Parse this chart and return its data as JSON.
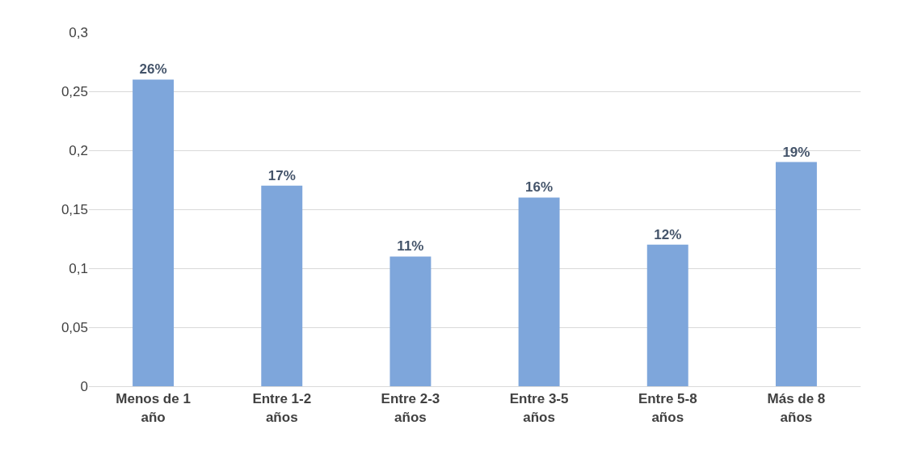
{
  "chart_data": {
    "type": "bar",
    "categories": [
      "Menos de 1 año",
      "Entre 1-2 años",
      "Entre 2-3 años",
      "Entre 3-5 años",
      "Entre 5-8 años",
      "Más de 8 años"
    ],
    "values": [
      0.26,
      0.17,
      0.11,
      0.16,
      0.12,
      0.19
    ],
    "value_labels": [
      "26%",
      "17%",
      "11%",
      "16%",
      "12%",
      "19%"
    ],
    "color": "#7ea6db",
    "ylim": [
      0,
      0.3
    ],
    "yticks": [
      0,
      {
        "value": 0.05,
        "label": "0,05"
      },
      {
        "value": 0.1,
        "label": "0,1"
      },
      {
        "value": 0.15,
        "label": "0,15"
      },
      {
        "value": 0.2,
        "label": "0,2"
      },
      {
        "value": 0.25,
        "label": "0,25"
      },
      {
        "value": 0.3,
        "label": "0,3"
      }
    ],
    "grid": "y"
  }
}
